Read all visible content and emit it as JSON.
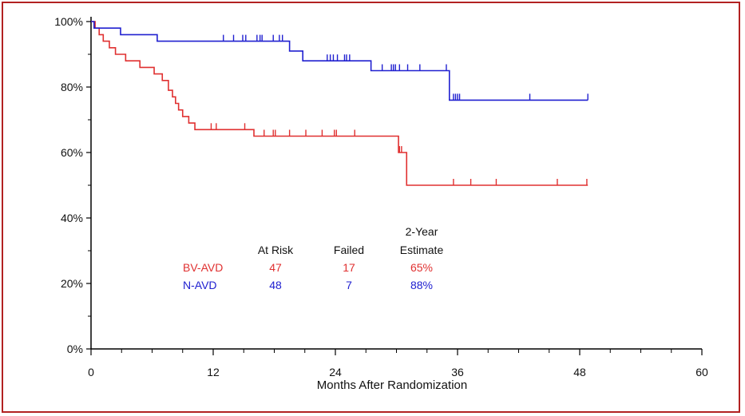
{
  "chart_data": {
    "type": "line",
    "xlabel": "Months After Randomization",
    "ylabel": "",
    "xlim": [
      0,
      60
    ],
    "ylim": [
      0,
      100
    ],
    "x_ticks": [
      0,
      12,
      24,
      36,
      48,
      60
    ],
    "x_tick_labels": [
      "0",
      "12",
      "24",
      "36",
      "48",
      "60"
    ],
    "y_ticks": [
      0,
      20,
      40,
      60,
      80,
      100
    ],
    "y_tick_labels": [
      "0%",
      "20%",
      "40%",
      "60%",
      "80%",
      "100%"
    ],
    "grid": false,
    "step": true,
    "series": [
      {
        "name": "BV-AVD",
        "color": "#e03030",
        "x": [
          0,
          0.4,
          0.8,
          1.2,
          1.8,
          2.4,
          3.4,
          4.8,
          6.2,
          7.0,
          7.6,
          8.0,
          8.3,
          8.6,
          9.0,
          9.6,
          10.2,
          16.0,
          30.2,
          31.0,
          48.8
        ],
        "y": [
          100,
          98,
          96,
          94,
          92,
          90,
          88,
          86,
          84,
          82,
          79,
          77,
          75,
          73,
          71,
          69,
          67,
          65,
          60,
          50,
          50
        ],
        "censor_x": [
          11.8,
          12.3,
          15.1,
          17.0,
          17.9,
          18.1,
          19.5,
          21.1,
          22.7,
          23.9,
          24.1,
          25.9,
          30.3,
          30.5,
          35.6,
          37.3,
          39.8,
          45.8,
          48.7
        ],
        "censor_y": [
          67,
          67,
          67,
          65,
          65,
          65,
          65,
          65,
          65,
          65,
          65,
          65,
          60,
          60,
          50,
          50,
          50,
          50,
          50
        ]
      },
      {
        "name": "N-AVD",
        "color": "#2020d0",
        "x": [
          0,
          0.3,
          2.9,
          6.5,
          19.5,
          20.8,
          27.5,
          35.2,
          48.8
        ],
        "y": [
          100,
          98,
          96,
          94,
          91,
          88,
          85,
          76,
          76
        ],
        "censor_x": [
          13.0,
          14.0,
          14.9,
          15.2,
          16.3,
          16.6,
          16.8,
          17.9,
          18.5,
          18.8,
          23.2,
          23.5,
          23.8,
          24.2,
          24.9,
          25.1,
          25.4,
          28.6,
          29.5,
          29.7,
          29.9,
          30.3,
          31.1,
          32.3,
          34.9,
          35.6,
          35.8,
          36.0,
          36.2,
          43.1,
          48.8
        ],
        "censor_y": [
          94,
          94,
          94,
          94,
          94,
          94,
          94,
          94,
          94,
          94,
          88,
          88,
          88,
          88,
          88,
          88,
          88,
          85,
          85,
          85,
          85,
          85,
          85,
          85,
          85,
          76,
          76,
          76,
          76,
          76,
          76
        ]
      }
    ],
    "table": {
      "headers": {
        "at_risk": "At Risk",
        "failed": "Failed",
        "estimate_line1": "2-Year",
        "estimate_line2": "Estimate"
      },
      "rows": [
        {
          "name": "BV-AVD",
          "at_risk": "47",
          "failed": "17",
          "estimate": "65%",
          "color": "#e03030"
        },
        {
          "name": "N-AVD",
          "at_risk": "48",
          "failed": "7",
          "estimate": "88%",
          "color": "#2020d0"
        }
      ]
    }
  }
}
